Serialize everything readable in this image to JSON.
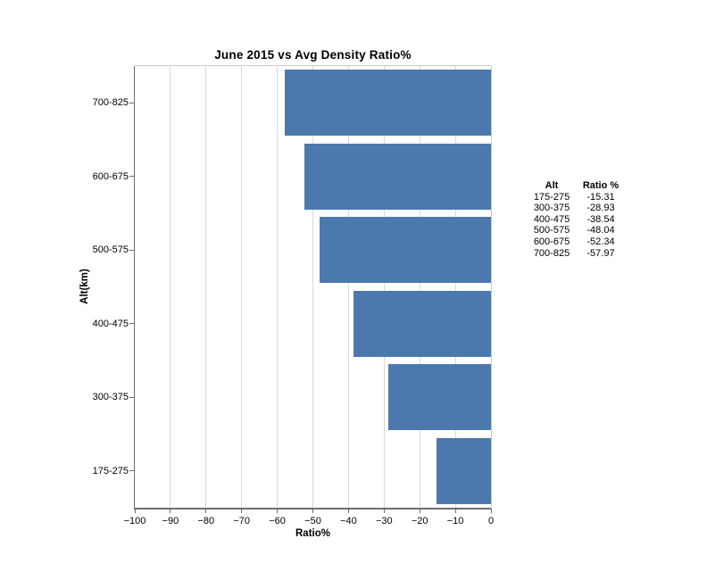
{
  "title": "June 2015 vs Avg Density Ratio%",
  "chart_data": {
    "type": "bar",
    "orientation": "horizontal",
    "title": "June 2015 vs Avg Density Ratio%",
    "xlabel": "Ratio%",
    "ylabel": "Alt(km)",
    "categories": [
      "175-275",
      "300-375",
      "400-475",
      "500-575",
      "600-675",
      "700-825"
    ],
    "values": [
      -15.31,
      -28.93,
      -38.54,
      -48.04,
      -52.34,
      -57.97
    ],
    "category_order_top_to_bottom": [
      "700-825",
      "600-675",
      "500-575",
      "400-475",
      "300-375",
      "175-275"
    ],
    "xlim": [
      -100,
      0
    ],
    "xticks": [
      -100,
      -90,
      -80,
      -70,
      -60,
      -50,
      -40,
      -30,
      -20,
      -10,
      0
    ],
    "xtick_labels": [
      "−100",
      "−90",
      "−80",
      "−70",
      "−60",
      "−50",
      "−40",
      "−30",
      "−20",
      "−10",
      "0"
    ],
    "grid": "vertical-only",
    "legend": "none",
    "bar_color": "#4B79AE",
    "grid_color": "#d9d9d9",
    "spine_dark_color": "#6e6e6e",
    "spine_light_color": "#c9c9c9",
    "background_color": "#ffffff"
  },
  "side_table": {
    "headers": [
      "Alt",
      "Ratio %"
    ],
    "rows": [
      [
        "175-275",
        "-15.31"
      ],
      [
        "300-375",
        "-28.93"
      ],
      [
        "400-475",
        "-38.54"
      ],
      [
        "500-575",
        "-48.04"
      ],
      [
        "600-675",
        "-52.34"
      ],
      [
        "700-825",
        "-57.97"
      ]
    ]
  }
}
